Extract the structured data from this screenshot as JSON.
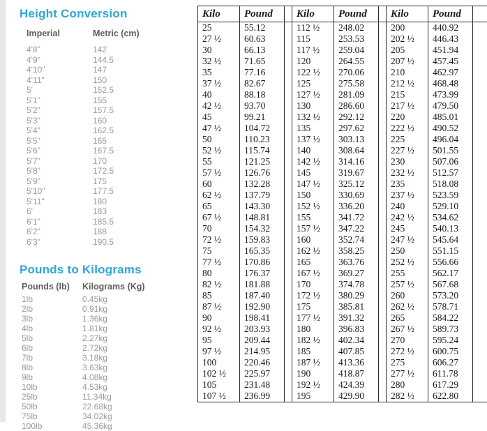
{
  "colors": {
    "accent_title": "#2BA7D7",
    "mini_header_text": "#5e5e5e",
    "mini_body_text": "#9a9a9a",
    "table_text": "#1b1b1b",
    "table_border": "#2b2b2b",
    "left_strip": "#e8e8e8"
  },
  "height_conversion": {
    "title": "Height Conversion",
    "columns": [
      "Imperial",
      "Metric (cm)"
    ],
    "rows": [
      [
        "4'8\"",
        "142"
      ],
      [
        "4'9\"",
        "144.5"
      ],
      [
        "4'10\"",
        "147"
      ],
      [
        "4'11\"",
        "150"
      ],
      [
        "5'",
        "152.5"
      ],
      [
        "5'1\"",
        "155"
      ],
      [
        "5'2\"",
        "157.5"
      ],
      [
        "5'3\"",
        "160"
      ],
      [
        "5'4\"",
        "162.5"
      ],
      [
        "5'5\"",
        "165"
      ],
      [
        "5'6\"",
        "167.5"
      ],
      [
        "5'7\"",
        "170"
      ],
      [
        "5'8\"",
        "172.5"
      ],
      [
        "5'9\"",
        "175"
      ],
      [
        "5'10\"",
        "177.5"
      ],
      [
        "5'11\"",
        "180"
      ],
      [
        "6'",
        "183"
      ],
      [
        "6'1\"",
        "185.5"
      ],
      [
        "6'2\"",
        "188"
      ],
      [
        "6'3\"",
        "190.5"
      ]
    ]
  },
  "pounds_to_kilograms": {
    "title": "Pounds to Kilograms",
    "columns": [
      "Pounds (lb)",
      "Kilograms (Kg)"
    ],
    "rows": [
      [
        "1lb",
        "0.45kg"
      ],
      [
        "2lb",
        "0.91kg"
      ],
      [
        "3lb",
        "1.36kg"
      ],
      [
        "4lb",
        "1.81kg"
      ],
      [
        "5lb",
        "2.27kg"
      ],
      [
        "6lb",
        "2.72kg"
      ],
      [
        "7lb",
        "3.18kg"
      ],
      [
        "8lb",
        "3.63kg"
      ],
      [
        "9lb",
        "4.08kg"
      ],
      [
        "10lb",
        "4.53kg"
      ],
      [
        "25lb",
        "11.34kg"
      ],
      [
        "50lb",
        "22.68kg"
      ],
      [
        "75lb",
        "34.02kg"
      ],
      [
        "100lb",
        "45.36kg"
      ]
    ]
  },
  "kilo_to_pound_table": {
    "headers": [
      "Kilo",
      "Pound",
      "Kilo",
      "Pound",
      "Kilo",
      "Pound"
    ],
    "rows": [
      [
        "25",
        "55.12",
        "112 ½",
        "248.02",
        "200",
        "440.92"
      ],
      [
        "27 ½",
        "60.63",
        "115",
        "253.53",
        "202 ½",
        "446.43"
      ],
      [
        "30",
        "66.13",
        "117 ½",
        "259.04",
        "205",
        "451.94"
      ],
      [
        "32 ½",
        "71.65",
        "120",
        "264.55",
        "207 ½",
        "457.45"
      ],
      [
        "35",
        "77.16",
        "122 ½",
        "270.06",
        "210",
        "462.97"
      ],
      [
        "37 ½",
        "82.67",
        "125",
        "275.58",
        "212 ½",
        "468.48"
      ],
      [
        "40",
        "88.18",
        "127 ½",
        "281.09",
        "215",
        "473.99"
      ],
      [
        "42 ½",
        "93.70",
        "130",
        "286.60",
        "217 ½",
        "479.50"
      ],
      [
        "45",
        "99.21",
        "132 ½",
        "292.12",
        "220",
        "485.01"
      ],
      [
        "47 ½",
        "104.72",
        "135",
        "297.62",
        "222 ½",
        "490.52"
      ],
      [
        "50",
        "110.23",
        "137 ½",
        "303.13",
        "225",
        "496.04"
      ],
      [
        "52 ½",
        "115.74",
        "140",
        "308.64",
        "227 ½",
        "501.55"
      ],
      [
        "55",
        "121.25",
        "142 ½",
        "314.16",
        "230",
        "507.06"
      ],
      [
        "57 ½",
        "126.76",
        "145",
        "319.67",
        "232 ½",
        "512.57"
      ],
      [
        "60",
        "132.28",
        "147 ½",
        "325.12",
        "235",
        "518.08"
      ],
      [
        "62 ½",
        "137.79",
        "150",
        "330.69",
        "237 ½",
        "523.59"
      ],
      [
        "65",
        "143.30",
        "152 ½",
        "336.20",
        "240",
        "529.10"
      ],
      [
        "67 ½",
        "148.81",
        "155",
        "341.72",
        "242 ½",
        "534.62"
      ],
      [
        "70",
        "154.32",
        "157 ½",
        "347.22",
        "245",
        "540.13"
      ],
      [
        "72 ½",
        "159.83",
        "160",
        "352.74",
        "247 ½",
        "545.64"
      ],
      [
        "75",
        "165.35",
        "162 ½",
        "358.25",
        "250",
        "551.15"
      ],
      [
        "77 ½",
        "170.86",
        "165",
        "363.76",
        "252 ½",
        "556.66"
      ],
      [
        "80",
        "176.37",
        "167 ½",
        "369.27",
        "255",
        "562.17"
      ],
      [
        "82 ½",
        "181.88",
        "170",
        "374.78",
        "257 ½",
        "567.68"
      ],
      [
        "85",
        "187.40",
        "172 ½",
        "380.29",
        "260",
        "573.20"
      ],
      [
        "87 ½",
        "192.90",
        "175",
        "385.81",
        "262 ½",
        "578.71"
      ],
      [
        "90",
        "198.41",
        "177 ½",
        "391.32",
        "265",
        "584.22"
      ],
      [
        "92 ½",
        "203.93",
        "180",
        "396.83",
        "267 ½",
        "589.73"
      ],
      [
        "95",
        "209.44",
        "182 ½",
        "402.34",
        "270",
        "595.24"
      ],
      [
        "97 ½",
        "214.95",
        "185",
        "407.85",
        "272 ½",
        "600.75"
      ],
      [
        "100",
        "220.46",
        "187 ½",
        "413.36",
        "275",
        "606.27"
      ],
      [
        "102 ½",
        "225.97",
        "190",
        "418.87",
        "277 ½",
        "611.78"
      ],
      [
        "105",
        "231.48",
        "192 ½",
        "424.39",
        "280",
        "617.29"
      ],
      [
        "107 ½",
        "236.99",
        "195",
        "429.90",
        "282 ½",
        "622.80"
      ]
    ]
  }
}
